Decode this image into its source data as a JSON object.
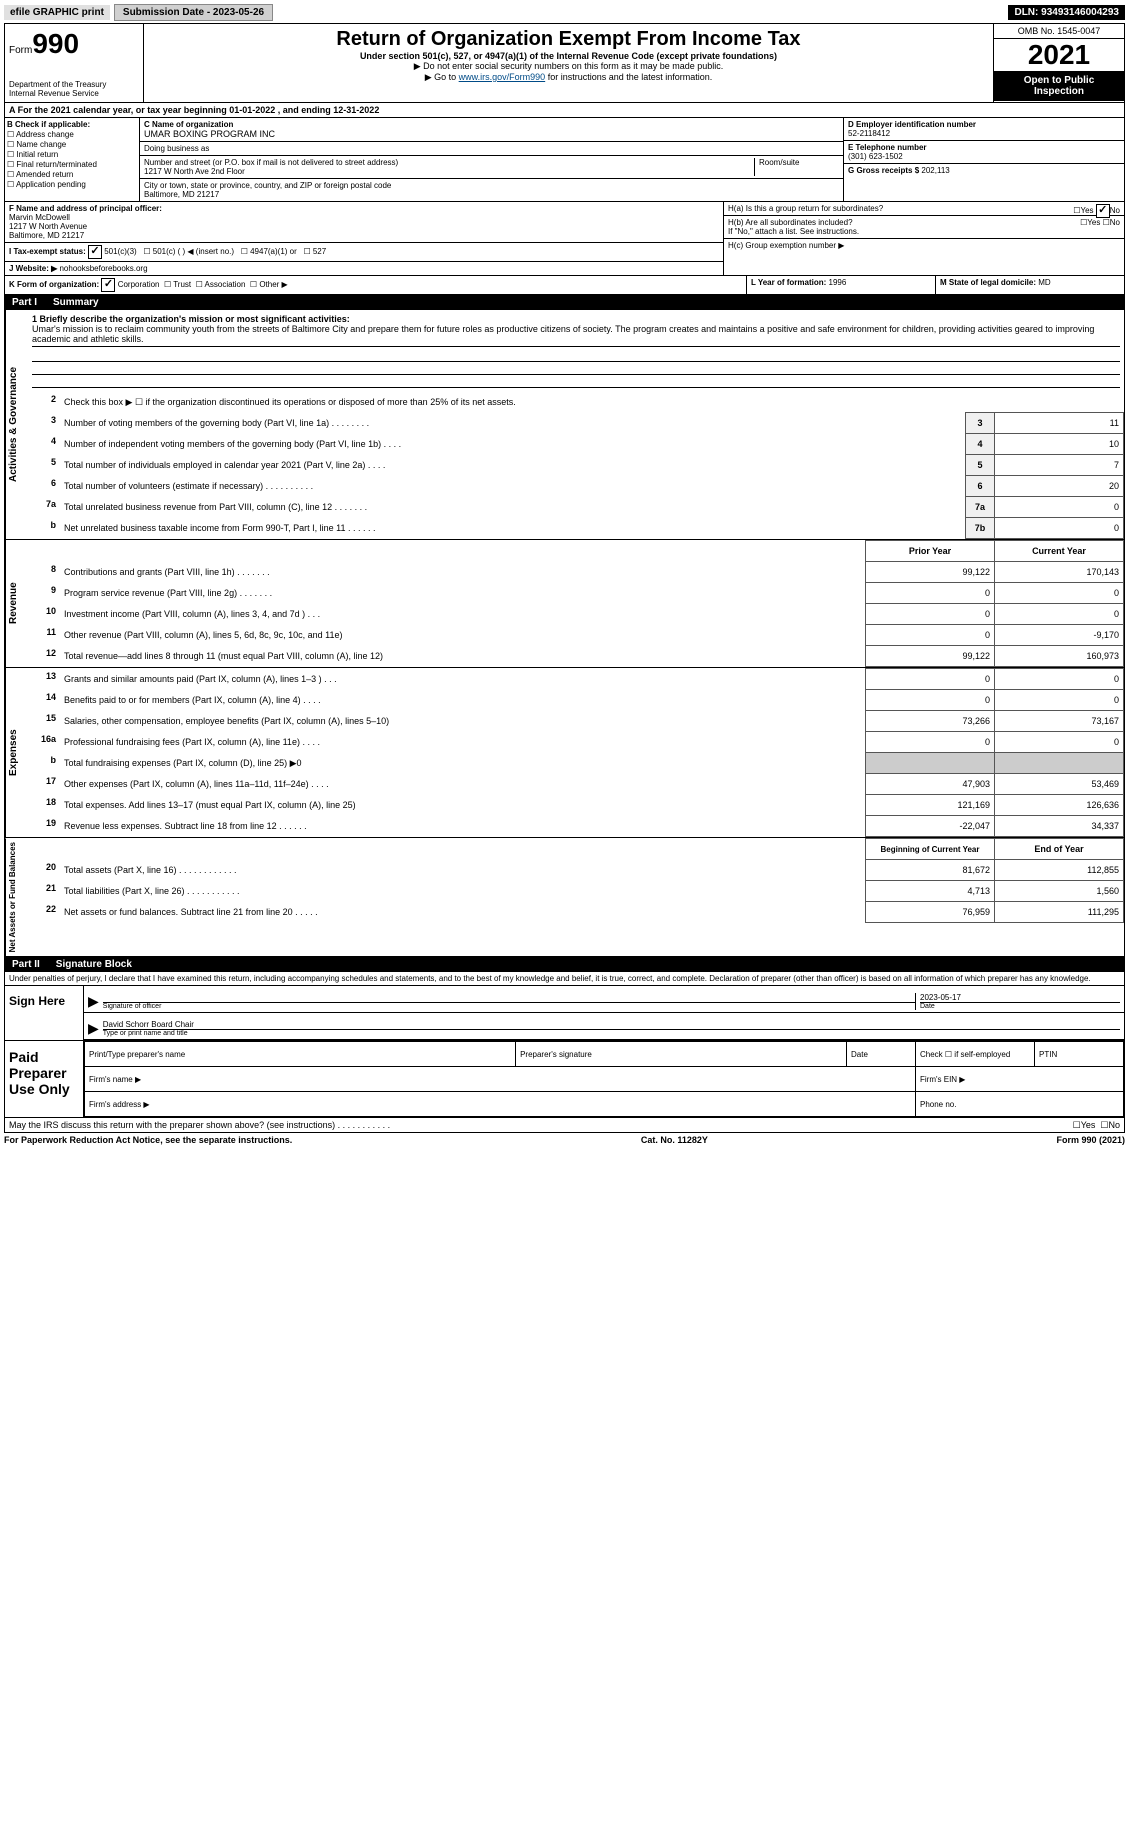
{
  "colors": {
    "header_black": "#000000",
    "link": "#004b87",
    "shaded": "#cccccc",
    "num_cell_bg": "#f0f0f0"
  },
  "top_bar": {
    "efile": "efile GRAPHIC print",
    "submission_btn": "Submission Date - 2023-05-26",
    "dln": "DLN: 93493146004293"
  },
  "header": {
    "form_prefix": "Form",
    "form_number": "990",
    "dept": "Department of the Treasury",
    "irs": "Internal Revenue Service",
    "title": "Return of Organization Exempt From Income Tax",
    "subtitle": "Under section 501(c), 527, or 4947(a)(1) of the Internal Revenue Code (except private foundations)",
    "note1": "▶ Do not enter social security numbers on this form as it may be made public.",
    "note2_prefix": "▶ Go to ",
    "note2_link": "www.irs.gov/Form990",
    "note2_suffix": " for instructions and the latest information.",
    "omb": "OMB No. 1545-0047",
    "year": "2021",
    "open": "Open to Public Inspection"
  },
  "row_a": "A For the 2021 calendar year, or tax year beginning 01-01-2022   , and ending 12-31-2022",
  "box_b": {
    "label": "B Check if applicable:",
    "options": [
      "Address change",
      "Name change",
      "Initial return",
      "Final return/terminated",
      "Amended return",
      "Application pending"
    ]
  },
  "box_c": {
    "name_label": "C Name of organization",
    "name": "UMAR BOXING PROGRAM INC",
    "dba_label": "Doing business as",
    "dba": "",
    "street_label": "Number and street (or P.O. box if mail is not delivered to street address)",
    "room_label": "Room/suite",
    "street": "1217 W North Ave 2nd Floor",
    "city_label": "City or town, state or province, country, and ZIP or foreign postal code",
    "city": "Baltimore, MD  21217"
  },
  "box_d": {
    "label": "D Employer identification number",
    "value": "52-2118412"
  },
  "box_e": {
    "label": "E Telephone number",
    "value": "(301) 623-1502"
  },
  "box_g": {
    "label": "G Gross receipts $",
    "value": "202,113"
  },
  "box_f": {
    "label": "F  Name and address of principal officer:",
    "name": "Marvin McDowell",
    "street": "1217 W North Avenue",
    "city": "Baltimore, MD  21217"
  },
  "box_h": {
    "a_label": "H(a)  Is this a group return for subordinates?",
    "b_label": "H(b)  Are all subordinates included?",
    "b_note": "If \"No,\" attach a list. See instructions.",
    "c_label": "H(c)  Group exemption number ▶",
    "yes": "Yes",
    "no": "No"
  },
  "box_i": {
    "label": "I  Tax-exempt status:",
    "opts": [
      "501(c)(3)",
      "501(c) (   ) ◀ (insert no.)",
      "4947(a)(1) or",
      "527"
    ]
  },
  "box_j": {
    "label": "J Website: ▶",
    "value": "nohooksbeforebooks.org"
  },
  "box_k": {
    "label": "K Form of organization:",
    "opts": [
      "Corporation",
      "Trust",
      "Association",
      "Other ▶"
    ]
  },
  "box_l": {
    "label": "L Year of formation:",
    "value": "1996"
  },
  "box_m": {
    "label": "M State of legal domicile:",
    "value": "MD"
  },
  "part1": {
    "num": "Part I",
    "title": "Summary"
  },
  "mission": {
    "label": "1 Briefly describe the organization's mission or most significant activities:",
    "text": "Umar's mission is to reclaim community youth from the streets of Baltimore City and prepare them for future roles as productive citizens of society. The program creates and maintains a positive and safe environment for children, providing activities geared to improving academic and athletic skills."
  },
  "line2": "Check this box ▶ ☐  if the organization discontinued its operations or disposed of more than 25% of its net assets.",
  "governance_label": "Activities & Governance",
  "revenue_label": "Revenue",
  "expenses_label": "Expenses",
  "netassets_label": "Net Assets or Fund Balances",
  "gov_rows": [
    {
      "n": "3",
      "desc": "Number of voting members of the governing body (Part VI, line 1a)   .     .     .     .     .     .     .     .",
      "box": "3",
      "val": "11"
    },
    {
      "n": "4",
      "desc": "Number of independent voting members of the governing body (Part VI, line 1b)    .     .     .     .",
      "box": "4",
      "val": "10"
    },
    {
      "n": "5",
      "desc": "Total number of individuals employed in calendar year 2021 (Part V, line 2a)    .     .     .     .",
      "box": "5",
      "val": "7"
    },
    {
      "n": "6",
      "desc": "Total number of volunteers (estimate if necessary)     .     .     .     .     .     .     .     .     .     .",
      "box": "6",
      "val": "20"
    },
    {
      "n": "7a",
      "desc": "Total unrelated business revenue from Part VIII, column (C), line 12    .     .     .     .     .     .     .",
      "box": "7a",
      "val": "0"
    },
    {
      "n": "b",
      "desc": "Net unrelated business taxable income from Form 990-T, Part I, line 11    .     .     .     .     .     .",
      "box": "7b",
      "val": "0"
    }
  ],
  "two_col_header": {
    "prior": "Prior Year",
    "current": "Current Year"
  },
  "rev_rows": [
    {
      "n": "8",
      "desc": "Contributions and grants (Part VIII, line 1h)    .     .     .     .     .     .     .",
      "p": "99,122",
      "c": "170,143"
    },
    {
      "n": "9",
      "desc": "Program service revenue (Part VIII, line 2g)    .     .     .     .     .     .     .",
      "p": "0",
      "c": "0"
    },
    {
      "n": "10",
      "desc": "Investment income (Part VIII, column (A), lines 3, 4, and 7d )    .     .     .",
      "p": "0",
      "c": "0"
    },
    {
      "n": "11",
      "desc": "Other revenue (Part VIII, column (A), lines 5, 6d, 8c, 9c, 10c, and 11e)",
      "p": "0",
      "c": "-9,170"
    },
    {
      "n": "12",
      "desc": "Total revenue—add lines 8 through 11 (must equal Part VIII, column (A), line 12)",
      "p": "99,122",
      "c": "160,973"
    }
  ],
  "exp_rows": [
    {
      "n": "13",
      "desc": "Grants and similar amounts paid (Part IX, column (A), lines 1–3 )   .     .     .",
      "p": "0",
      "c": "0"
    },
    {
      "n": "14",
      "desc": "Benefits paid to or for members (Part IX, column (A), line 4)    .     .     .     .",
      "p": "0",
      "c": "0"
    },
    {
      "n": "15",
      "desc": "Salaries, other compensation, employee benefits (Part IX, column (A), lines 5–10)",
      "p": "73,266",
      "c": "73,167"
    },
    {
      "n": "16a",
      "desc": "Professional fundraising fees (Part IX, column (A), line 11e)    .     .     .     .",
      "p": "0",
      "c": "0"
    },
    {
      "n": "b",
      "desc": "Total fundraising expenses (Part IX, column (D), line 25) ▶0",
      "p": "_shaded",
      "c": "_shaded"
    },
    {
      "n": "17",
      "desc": "Other expenses (Part IX, column (A), lines 11a–11d, 11f–24e)    .     .     .     .",
      "p": "47,903",
      "c": "53,469"
    },
    {
      "n": "18",
      "desc": "Total expenses. Add lines 13–17 (must equal Part IX, column (A), line 25)",
      "p": "121,169",
      "c": "126,636"
    },
    {
      "n": "19",
      "desc": "Revenue less expenses. Subtract line 18 from line 12    .     .     .     .     .     .",
      "p": "-22,047",
      "c": "34,337"
    }
  ],
  "net_header": {
    "begin": "Beginning of Current Year",
    "end": "End of Year"
  },
  "net_rows": [
    {
      "n": "20",
      "desc": "Total assets (Part X, line 16)    .     .     .     .     .     .     .     .     .     .     .     .",
      "p": "81,672",
      "c": "112,855"
    },
    {
      "n": "21",
      "desc": "Total liabilities (Part X, line 26)    .     .     .     .     .     .     .     .     .     .     .",
      "p": "4,713",
      "c": "1,560"
    },
    {
      "n": "22",
      "desc": "Net assets or fund balances. Subtract line 21 from line 20    .     .     .     .     .",
      "p": "76,959",
      "c": "111,295"
    }
  ],
  "part2": {
    "num": "Part II",
    "title": "Signature Block"
  },
  "sig": {
    "declare": "Under penalties of perjury, I declare that I have examined this return, including accompanying schedules and statements, and to the best of my knowledge and belief, it is true, correct, and complete. Declaration of preparer (other than officer) is based on all information of which preparer has any knowledge.",
    "sign_here": "Sign Here",
    "sig_officer": "Signature of officer",
    "date": "Date",
    "sig_date": "2023-05-17",
    "name_title": "David Schorr  Board Chair",
    "name_title_label": "Type or print name and title",
    "paid_label": "Paid Preparer Use Only",
    "print_name": "Print/Type preparer's name",
    "prep_sig": "Preparer's signature",
    "date_col": "Date",
    "check_self": "Check ☐ if self-employed",
    "ptin": "PTIN",
    "firm_name": "Firm's name    ▶",
    "firm_ein": "Firm's EIN ▶",
    "firm_addr": "Firm's address ▶",
    "phone": "Phone no.",
    "may_irs": "May the IRS discuss this return with the preparer shown above? (see instructions)    .     .     .     .     .     .     .     .     .     .     .",
    "yes": "Yes",
    "no": "No"
  },
  "footer": {
    "left": "For Paperwork Reduction Act Notice, see the separate instructions.",
    "center": "Cat. No. 11282Y",
    "right": "Form 990 (2021)"
  }
}
